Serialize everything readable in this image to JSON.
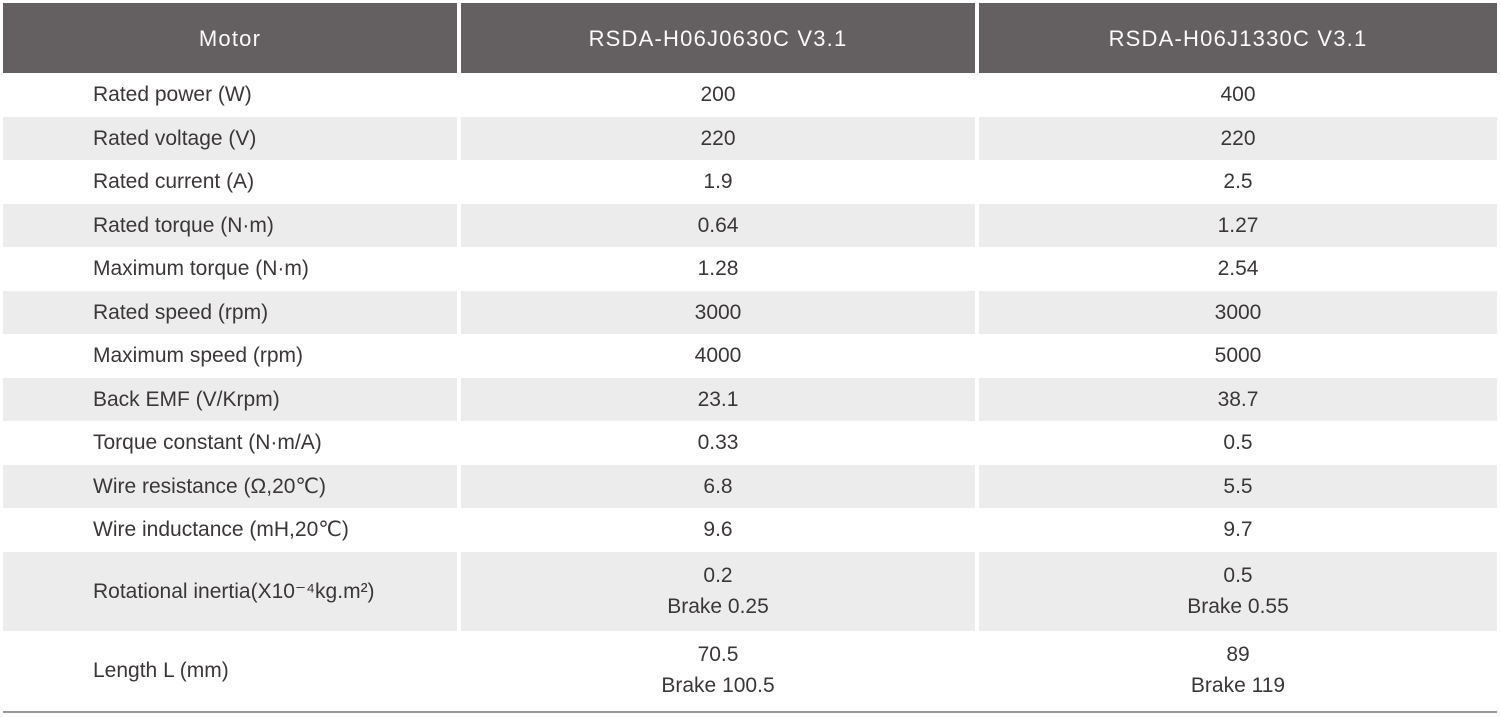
{
  "table": {
    "header": {
      "motor_label": "Motor",
      "models": [
        "RSDA-H06J0630C V3.1",
        "RSDA-H06J1330C V3.1"
      ]
    },
    "rows": [
      {
        "label": "Rated power (W)",
        "values": [
          "200",
          "400"
        ]
      },
      {
        "label": "Rated voltage (V)",
        "values": [
          "220",
          "220"
        ]
      },
      {
        "label": "Rated current (A)",
        "values": [
          "1.9",
          "2.5"
        ]
      },
      {
        "label": "Rated torque (N·m)",
        "values": [
          "0.64",
          "1.27"
        ]
      },
      {
        "label": "Maximum torque (N·m)",
        "values": [
          "1.28",
          "2.54"
        ]
      },
      {
        "label": "Rated speed (rpm)",
        "values": [
          "3000",
          "3000"
        ]
      },
      {
        "label": "Maximum speed (rpm)",
        "values": [
          "4000",
          "5000"
        ]
      },
      {
        "label": "Back EMF (V/Krpm)",
        "values": [
          "23.1",
          "38.7"
        ]
      },
      {
        "label": "Torque constant (N·m/A)",
        "values": [
          "0.33",
          "0.5"
        ]
      },
      {
        "label": "Wire resistance (Ω,20℃)",
        "values": [
          "6.8",
          "5.5"
        ]
      },
      {
        "label": "Wire inductance (mH,20℃)",
        "values": [
          "9.6",
          "9.7"
        ]
      },
      {
        "label": "Rotational inertia(X10⁻⁴kg.m²)",
        "values": [
          "0.2\nBrake 0.25",
          "0.5\nBrake 0.55"
        ]
      },
      {
        "label": "Length L (mm)",
        "values": [
          "70.5\nBrake 100.5",
          "89\nBrake 119"
        ]
      }
    ],
    "colors": {
      "header_bg": "#646061",
      "header_text": "#fafafa",
      "row_alt_bg": "#ececec",
      "body_text": "#3b3738",
      "bottom_border": "#9a9a9a"
    }
  }
}
